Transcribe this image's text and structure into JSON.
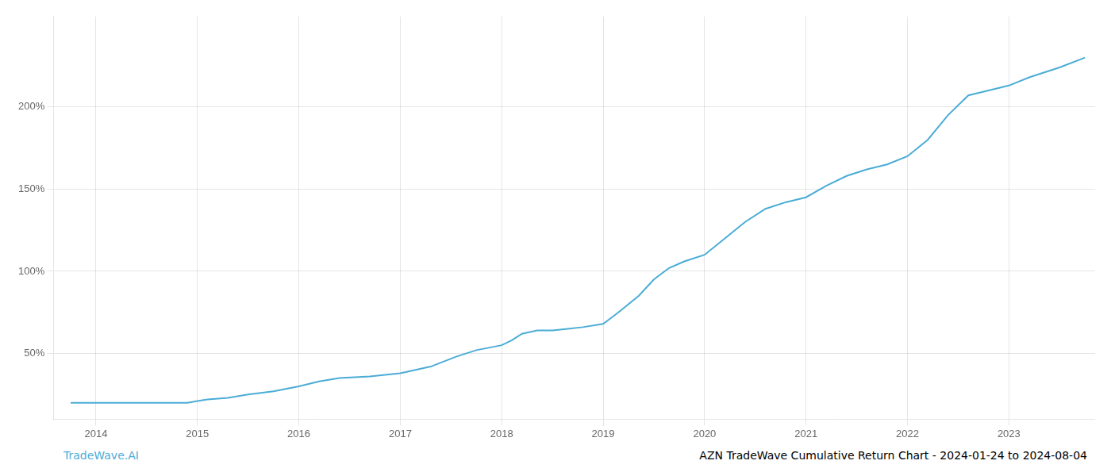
{
  "chart_data": {
    "type": "line",
    "x": [
      2013.75,
      2014.0,
      2014.3,
      2014.6,
      2014.9,
      2015.0,
      2015.1,
      2015.3,
      2015.5,
      2015.75,
      2016.0,
      2016.2,
      2016.4,
      2016.7,
      2017.0,
      2017.15,
      2017.3,
      2017.55,
      2017.75,
      2018.0,
      2018.1,
      2018.2,
      2018.35,
      2018.5,
      2018.65,
      2018.8,
      2019.0,
      2019.15,
      2019.35,
      2019.5,
      2019.65,
      2019.8,
      2020.0,
      2020.2,
      2020.4,
      2020.6,
      2020.8,
      2021.0,
      2021.2,
      2021.4,
      2021.6,
      2021.8,
      2022.0,
      2022.2,
      2022.4,
      2022.6,
      2022.8,
      2023.0,
      2023.2,
      2023.5,
      2023.75
    ],
    "values": [
      20,
      20,
      20,
      20,
      20,
      21,
      22,
      23,
      25,
      27,
      30,
      33,
      35,
      36,
      38,
      40,
      42,
      48,
      52,
      55,
      58,
      62,
      64,
      64,
      65,
      66,
      68,
      75,
      85,
      95,
      102,
      106,
      110,
      120,
      130,
      138,
      142,
      145,
      152,
      158,
      162,
      165,
      170,
      180,
      195,
      207,
      210,
      213,
      218,
      224,
      230
    ],
    "color": "#4bacd6",
    "xlim": [
      2013.58,
      2023.85
    ],
    "xticks": [
      2014,
      2015,
      2016,
      2017,
      2018,
      2019,
      2020,
      2021,
      2022,
      2023
    ],
    "ylim": [
      10,
      255
    ],
    "yticks": [
      {
        "value": 50,
        "label": "50%"
      },
      {
        "value": 100,
        "label": "100%"
      },
      {
        "value": 150,
        "label": "150%"
      },
      {
        "value": 200,
        "label": "200%"
      }
    ],
    "grid": true,
    "annotations": [
      {
        "text": "TradeWave.AI",
        "color": "#4bacd6"
      },
      {
        "text": "AZN TradeWave Cumulative Return Chart - 2024-01-24 to 2024-08-04"
      }
    ]
  }
}
